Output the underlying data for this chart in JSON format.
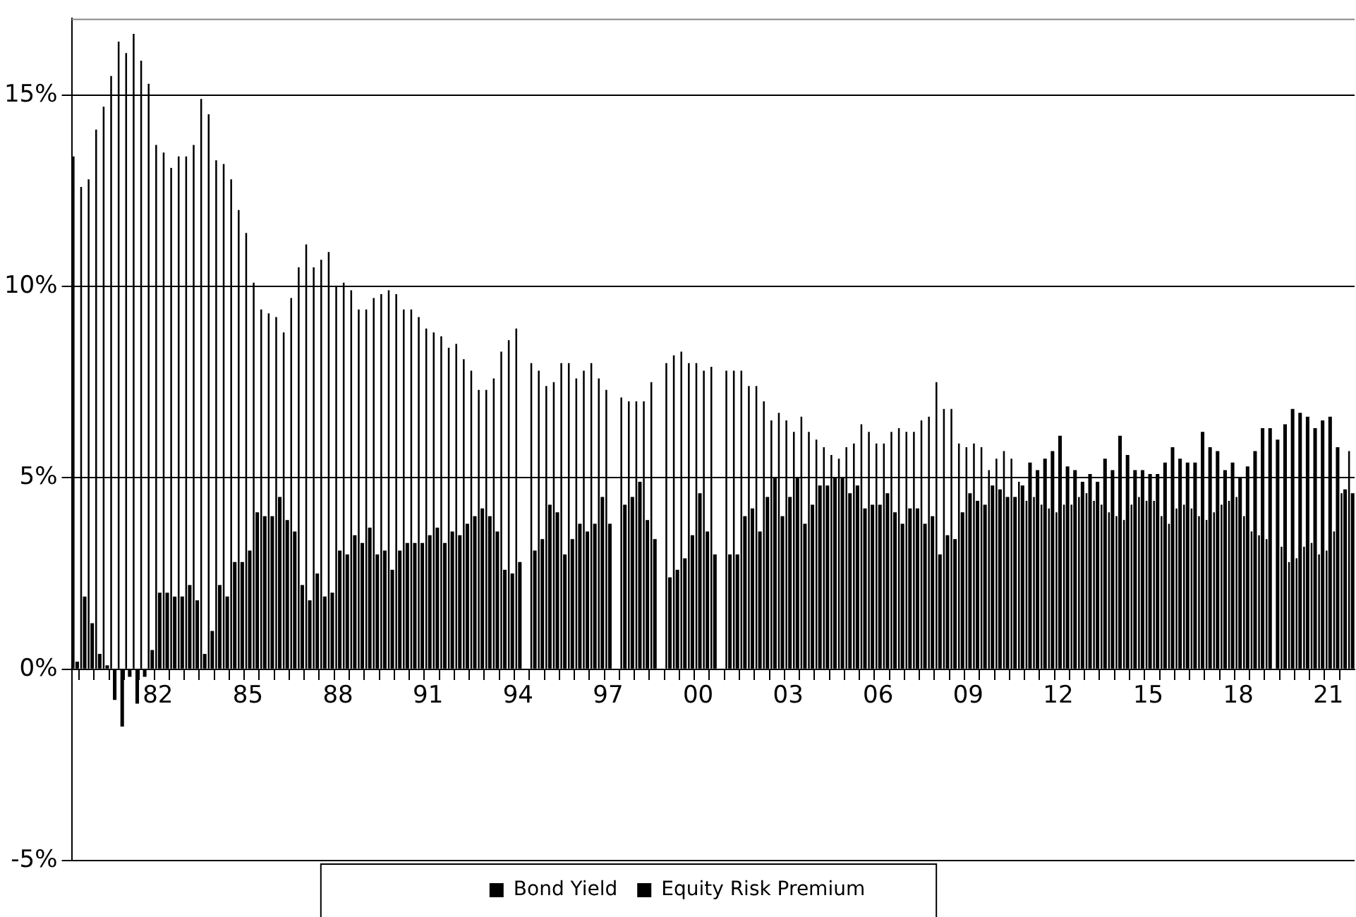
{
  "chart_data": {
    "type": "bar",
    "categories": [
      null,
      null,
      null,
      null,
      null,
      null,
      null,
      null,
      null,
      null,
      null,
      "82",
      null,
      null,
      null,
      null,
      null,
      null,
      null,
      null,
      null,
      null,
      null,
      "85",
      null,
      null,
      null,
      null,
      null,
      null,
      null,
      null,
      null,
      null,
      null,
      "88",
      null,
      null,
      null,
      null,
      null,
      null,
      null,
      null,
      null,
      null,
      null,
      "91",
      null,
      null,
      null,
      null,
      null,
      null,
      null,
      null,
      null,
      null,
      null,
      "94",
      null,
      null,
      null,
      null,
      null,
      null,
      null,
      null,
      null,
      null,
      null,
      "97",
      null,
      null,
      null,
      null,
      null,
      null,
      null,
      null,
      null,
      null,
      null,
      "00",
      null,
      null,
      null,
      null,
      null,
      null,
      null,
      null,
      null,
      null,
      null,
      "03",
      null,
      null,
      null,
      null,
      null,
      null,
      null,
      null,
      null,
      null,
      null,
      "06",
      null,
      null,
      null,
      null,
      null,
      null,
      null,
      null,
      null,
      null,
      null,
      "09",
      null,
      null,
      null,
      null,
      null,
      null,
      null,
      null,
      null,
      null,
      null,
      "12",
      null,
      null,
      null,
      null,
      null,
      null,
      null,
      null,
      null,
      null,
      null,
      "15",
      null,
      null,
      null,
      null,
      null,
      null,
      null,
      null,
      null,
      null,
      null,
      "18",
      null,
      null,
      null,
      null,
      null,
      null,
      null,
      null,
      null,
      null,
      null,
      "21",
      null,
      null,
      null
    ],
    "series": [
      {
        "name": "Bond Yield",
        "color": "#000000",
        "values": [
          13.4,
          12.6,
          12.8,
          14.1,
          14.7,
          15.5,
          16.4,
          16.1,
          16.6,
          15.9,
          15.3,
          13.7,
          13.5,
          13.1,
          13.4,
          13.4,
          13.7,
          14.9,
          14.5,
          13.3,
          13.2,
          12.8,
          12.0,
          11.4,
          10.1,
          9.4,
          9.3,
          9.2,
          8.8,
          9.7,
          10.5,
          11.1,
          10.5,
          10.7,
          10.9,
          10.0,
          10.1,
          9.9,
          9.4,
          9.4,
          9.7,
          9.8,
          9.9,
          9.8,
          9.4,
          9.4,
          9.2,
          8.9,
          8.8,
          8.7,
          8.4,
          8.5,
          8.1,
          7.8,
          7.3,
          7.3,
          7.6,
          8.3,
          8.6,
          8.9,
          null,
          8.0,
          7.8,
          7.4,
          7.5,
          8.0,
          8.0,
          7.6,
          7.8,
          8.0,
          7.6,
          7.3,
          null,
          7.1,
          7.0,
          7.0,
          7.0,
          7.5,
          null,
          8.0,
          8.2,
          8.3,
          8.0,
          8.0,
          7.8,
          7.9,
          null,
          7.8,
          7.8,
          7.8,
          7.4,
          7.4,
          7.0,
          6.5,
          6.7,
          6.5,
          6.2,
          6.6,
          6.2,
          6.0,
          5.8,
          5.6,
          5.5,
          5.8,
          5.9,
          6.4,
          6.2,
          5.9,
          5.9,
          6.2,
          6.3,
          6.2,
          6.2,
          6.5,
          6.6,
          7.5,
          6.8,
          6.8,
          5.9,
          5.8,
          5.9,
          5.8,
          5.2,
          5.5,
          5.7,
          5.5,
          4.9,
          4.4,
          4.5,
          4.3,
          4.2,
          4.1,
          4.3,
          4.3,
          4.5,
          4.6,
          4.4,
          4.3,
          4.1,
          4.0,
          3.9,
          4.3,
          4.5,
          4.4,
          4.4,
          4.0,
          3.8,
          4.2,
          4.3,
          4.2,
          4.0,
          3.9,
          4.1,
          4.3,
          4.4,
          4.5,
          4.0,
          3.6,
          3.5,
          3.4,
          null,
          3.2,
          2.8,
          2.9,
          3.2,
          3.3,
          3.0,
          3.1,
          3.6,
          4.6,
          5.7
        ]
      },
      {
        "name": "Equity Risk Premium",
        "color": "#000000",
        "values": [
          0.2,
          1.9,
          1.2,
          0.4,
          0.1,
          -0.8,
          -1.5,
          -0.2,
          -0.9,
          -0.2,
          0.5,
          2.0,
          2.0,
          1.9,
          1.9,
          2.2,
          1.8,
          0.4,
          1.0,
          2.2,
          1.9,
          2.8,
          2.8,
          3.1,
          4.1,
          4.0,
          4.0,
          4.5,
          3.9,
          3.6,
          2.2,
          1.8,
          2.5,
          1.9,
          2.0,
          3.1,
          3.0,
          3.5,
          3.3,
          3.7,
          3.0,
          3.1,
          2.6,
          3.1,
          3.3,
          3.3,
          3.3,
          3.5,
          3.7,
          3.3,
          3.6,
          3.5,
          3.8,
          4.0,
          4.2,
          4.0,
          3.6,
          2.6,
          2.5,
          2.8,
          null,
          3.1,
          3.4,
          4.3,
          4.1,
          3.0,
          3.4,
          3.8,
          3.6,
          3.8,
          4.5,
          3.8,
          null,
          4.3,
          4.5,
          4.9,
          3.9,
          3.4,
          null,
          2.4,
          2.6,
          2.9,
          3.5,
          4.6,
          3.6,
          3.0,
          null,
          3.0,
          3.0,
          4.0,
          4.2,
          3.6,
          4.5,
          5.0,
          4.0,
          4.5,
          5.0,
          3.8,
          4.3,
          4.8,
          4.8,
          5.0,
          5.0,
          4.6,
          4.8,
          4.2,
          4.3,
          4.3,
          4.6,
          4.1,
          3.8,
          4.2,
          4.2,
          3.8,
          4.0,
          3.0,
          3.5,
          3.4,
          4.1,
          4.6,
          4.4,
          4.3,
          4.8,
          4.7,
          4.5,
          4.5,
          4.8,
          5.4,
          5.2,
          5.5,
          5.7,
          6.1,
          5.3,
          5.2,
          4.9,
          5.1,
          4.9,
          5.5,
          5.2,
          6.1,
          5.6,
          5.2,
          5.2,
          5.1,
          5.1,
          5.4,
          5.8,
          5.5,
          5.4,
          5.4,
          6.2,
          5.8,
          5.7,
          5.2,
          5.4,
          5.0,
          5.3,
          5.7,
          6.3,
          6.3,
          6.0,
          6.4,
          6.8,
          6.7,
          6.6,
          6.3,
          6.5,
          6.6,
          5.8,
          4.7,
          4.6
        ]
      }
    ],
    "ylim": [
      -5,
      17
    ],
    "yticks": [
      {
        "value": -5,
        "label": "-5%"
      },
      {
        "value": 0,
        "label": "0%"
      },
      {
        "value": 5,
        "label": "5%"
      },
      {
        "value": 10,
        "label": "10%"
      },
      {
        "value": 15,
        "label": "15%"
      }
    ],
    "grid": "y",
    "legend": "bottom"
  }
}
